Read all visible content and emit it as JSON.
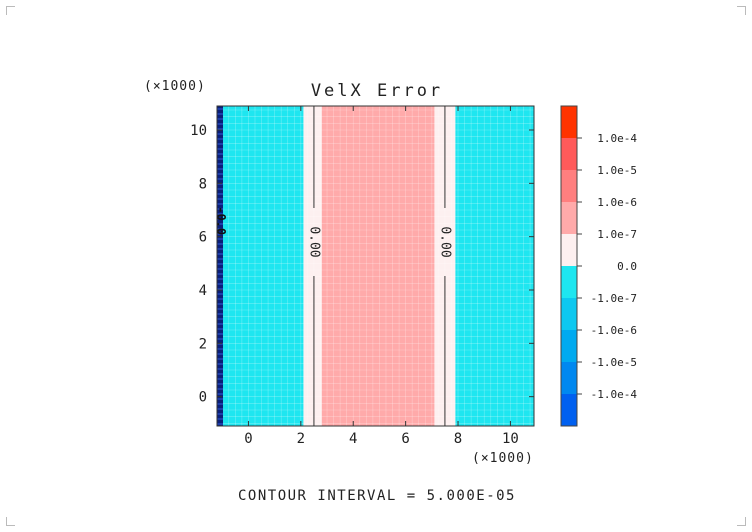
{
  "chart_data": {
    "type": "heatmap",
    "title": "VelX Error",
    "x_scale_label": "(×1000)",
    "y_scale_label": "(×1000)",
    "xlim": [
      -1.2,
      10.9
    ],
    "ylim": [
      -1.1,
      10.9
    ],
    "x_ticks": [
      0,
      2,
      4,
      6,
      8,
      10
    ],
    "y_ticks": [
      0,
      2,
      4,
      6,
      8,
      10
    ],
    "bands": [
      {
        "x0": -1.2,
        "x1": 2.1,
        "level": "-1.0e-7",
        "color": "#1ee6f0"
      },
      {
        "x0": 2.1,
        "x1": 2.8,
        "level": "0.0",
        "color": "#fdf0f0"
      },
      {
        "x0": 2.8,
        "x1": 7.1,
        "level": "1.0e-7",
        "color": "#ffaaaa"
      },
      {
        "x0": 7.1,
        "x1": 7.9,
        "level": "0.0",
        "color": "#fdf0f0"
      },
      {
        "x0": 7.9,
        "x1": 10.9,
        "level": "-1.0e-7",
        "color": "#1ee6f0"
      }
    ],
    "contours": [
      {
        "x": 2.5,
        "label": "0.00"
      },
      {
        "x": 7.5,
        "label": "0.00"
      }
    ],
    "edge_contour": {
      "label": "-0.0",
      "label_y": 6.6
    },
    "colorbar": {
      "colors": [
        "#ff3300",
        "#ff5a5a",
        "#ff7f7f",
        "#ffaaaa",
        "#fdf0f0",
        "#1ee6f0",
        "#0dc8f0",
        "#00aaf0",
        "#0088f0",
        "#0060f0"
      ],
      "labels": [
        "1.0e-4",
        "1.0e-5",
        "1.0e-6",
        "1.0e-7",
        "0.0",
        "-1.0e-7",
        "-1.0e-6",
        "-1.0e-5",
        "-1.0e-4"
      ]
    },
    "grid": true,
    "footer": "CONTOUR INTERVAL = 5.000E-05"
  }
}
